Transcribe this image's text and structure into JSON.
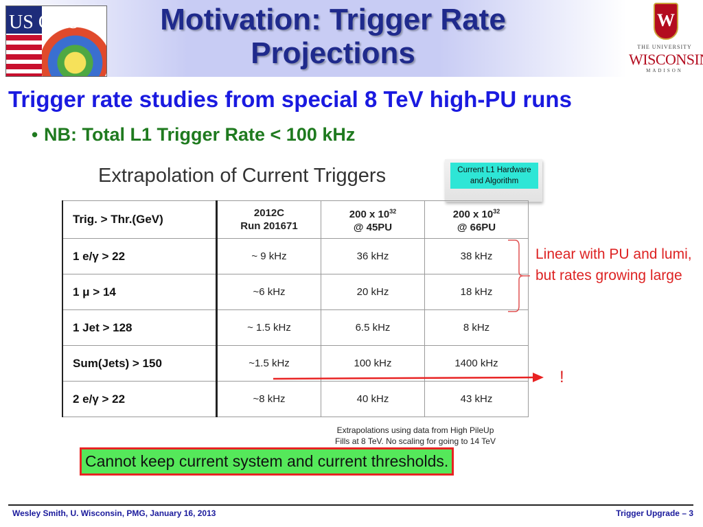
{
  "header": {
    "title_line1": "Motivation: Trigger Rate",
    "title_line2": "Projections",
    "uscms_logo_text": "US CMS",
    "wisconsin_logo": {
      "crest_letter": "W",
      "line1": "THE UNIVERSITY",
      "line2": "WISCONSIN",
      "line3": "MADISON"
    }
  },
  "subtitle": "Trigger rate studies from special 8 TeV high-PU runs",
  "bullet": "NB: Total L1 Trigger Rate < 100 kHz",
  "figure": {
    "title": "Extrapolation of Current Triggers",
    "hardware_label": "Current L1 Hardware and Algorithm",
    "table": {
      "headers": {
        "thr": "Trig. > Thr.(GeV)",
        "col1_line1": "2012C",
        "col1_line2": "Run 201671",
        "col2_line1": "200 x 10",
        "col2_sup": "32",
        "col2_line2": "@ 45PU",
        "col3_line1": "200 x 10",
        "col3_sup": "32",
        "col3_line2": "@ 66PU"
      },
      "rows": [
        {
          "trigger": "1 e/γ > 22",
          "run2012c": "~ 9 kHz",
          "pu45": "36 kHz",
          "pu66": "38 kHz"
        },
        {
          "trigger": "1 μ > 14",
          "run2012c": "~6 kHz",
          "pu45": "20 kHz",
          "pu66": "18 kHz"
        },
        {
          "trigger": "1 Jet > 128",
          "run2012c": "~ 1.5 kHz",
          "pu45": "6.5 kHz",
          "pu66": "8 kHz"
        },
        {
          "trigger": "Sum(Jets) > 150",
          "run2012c": "~1.5 kHz",
          "pu45": "100 kHz",
          "pu66": "1400 kHz"
        },
        {
          "trigger": "2 e/γ > 22",
          "run2012c": "~8 kHz",
          "pu45": "40 kHz",
          "pu66": "43 kHz"
        }
      ]
    },
    "note_line1": "Extrapolations using data from High PileUp",
    "note_line2": "Fills at 8 TeV.  No scaling for going to 14 TeV"
  },
  "annotation": "Linear with PU and lumi, but rates growing large",
  "exclamation": "!",
  "conclusion": "Cannot keep current system and current thresholds.",
  "footer": {
    "left": "Wesley Smith, U. Wisconsin, PMG, January 16, 2013",
    "right": "Trigger Upgrade  – 3"
  },
  "colors": {
    "title": "#1f2a8c",
    "subtitle": "#1a1ae0",
    "bullet": "#1f7a1f",
    "annotation": "#dd2222",
    "conclusion_bg": "#55e85a",
    "conclusion_border": "#e82222",
    "hardware_box": "#2ee6d6"
  }
}
